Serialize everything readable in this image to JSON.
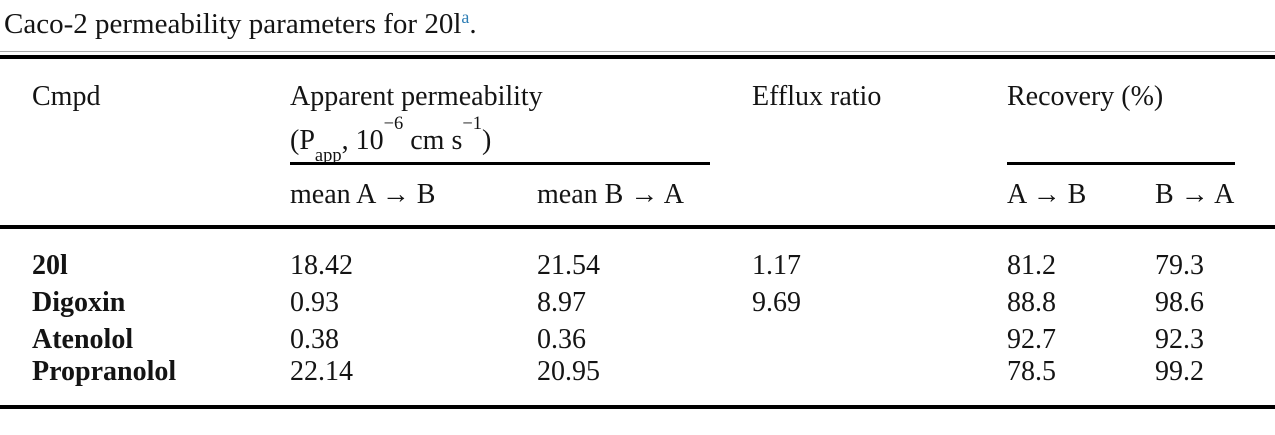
{
  "caption": {
    "text": "Caco-2 permeability parameters for 20l",
    "footnote_marker": "a",
    "period": "."
  },
  "colors": {
    "footnote_link": "#2e7eb5",
    "rule": "#000000",
    "hairline": "#a9a9a9",
    "text": "#141414",
    "background": "#ffffff"
  },
  "table": {
    "header": {
      "cmpd": "Cmpd",
      "apparent_permeability": {
        "line1": "Apparent permeability",
        "open": "(P",
        "sub": "app",
        "mid": ", 10",
        "exp1": "−6",
        "units": " cm s",
        "exp2": "−1",
        "close": ")"
      },
      "efflux_ratio": "Efflux ratio",
      "recovery": "Recovery (%)",
      "sub_mean_ab": "mean A → B",
      "sub_mean_ba": "mean B → A",
      "sub_ab": "A → B",
      "sub_ba": "B → A"
    },
    "rows": [
      {
        "cmpd": "20l",
        "mean_ab": "18.42",
        "mean_ba": "21.54",
        "efflux": "1.17",
        "rec_ab": "81.2",
        "rec_ba": "79.3"
      },
      {
        "cmpd": "Digoxin",
        "mean_ab": "0.93",
        "mean_ba": "8.97",
        "efflux": "9.69",
        "rec_ab": "88.8",
        "rec_ba": "98.6"
      },
      {
        "cmpd": "Atenolol",
        "mean_ab": "0.38",
        "mean_ba": "0.36",
        "efflux": "",
        "rec_ab": "92.7",
        "rec_ba": "92.3"
      },
      {
        "cmpd": "Propranolol",
        "mean_ab": "22.14",
        "mean_ba": "20.95",
        "efflux": "",
        "rec_ab": "78.5",
        "rec_ba": "99.2"
      }
    ]
  }
}
